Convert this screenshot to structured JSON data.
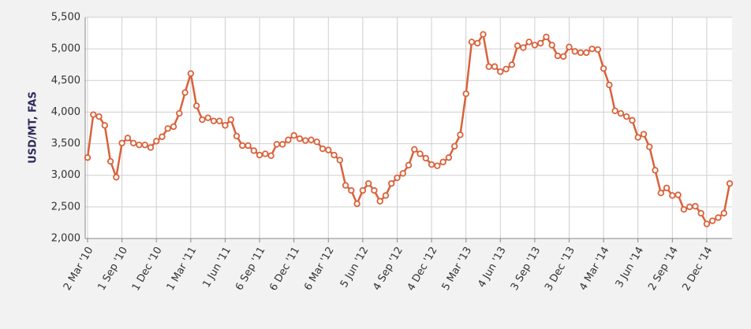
{
  "chart_data": {
    "type": "line",
    "ylabel": "USD/MT, FAS",
    "categories": [
      "2 Mar '10",
      null,
      null,
      null,
      null,
      null,
      "1 Sep '10",
      null,
      null,
      null,
      null,
      null,
      "1 Dec '10",
      null,
      null,
      null,
      null,
      null,
      "1 Mar '11",
      null,
      null,
      null,
      null,
      null,
      "1 Jun '11",
      null,
      null,
      null,
      null,
      null,
      "6 Sep '11",
      null,
      null,
      null,
      null,
      null,
      "6 Dec '11",
      null,
      null,
      null,
      null,
      null,
      "6 Mar '12",
      null,
      null,
      null,
      null,
      null,
      "5 Jun '12",
      null,
      null,
      null,
      null,
      null,
      "4 Sep '12",
      null,
      null,
      null,
      null,
      null,
      "4 Dec '12",
      null,
      null,
      null,
      null,
      null,
      "5 Mar '13",
      null,
      null,
      null,
      null,
      null,
      "4 Jun '13",
      null,
      null,
      null,
      null,
      null,
      "3 Sep '13",
      null,
      null,
      null,
      null,
      null,
      "3 Dec '13",
      null,
      null,
      null,
      null,
      null,
      "4 Mar '14",
      null,
      null,
      null,
      null,
      null,
      "3 Jun '14",
      null,
      null,
      null,
      null,
      null,
      "2 Sep '14",
      null,
      null,
      null,
      null,
      null,
      "2 Dec '14",
      null,
      null,
      null,
      null
    ],
    "values": [
      3280,
      3960,
      3930,
      3790,
      3220,
      2970,
      3510,
      3590,
      3510,
      3480,
      3480,
      3440,
      3540,
      3610,
      3740,
      3770,
      3980,
      4310,
      4610,
      4100,
      3880,
      3910,
      3860,
      3860,
      3790,
      3880,
      3620,
      3470,
      3470,
      3390,
      3320,
      3340,
      3310,
      3490,
      3490,
      3560,
      3630,
      3580,
      3550,
      3560,
      3530,
      3420,
      3400,
      3320,
      3240,
      2840,
      2760,
      2550,
      2760,
      2870,
      2760,
      2590,
      2680,
      2870,
      2960,
      3030,
      3160,
      3410,
      3340,
      3270,
      3170,
      3150,
      3210,
      3280,
      3460,
      3640,
      4290,
      5110,
      5090,
      5230,
      4720,
      4720,
      4640,
      4680,
      4750,
      5050,
      5020,
      5110,
      5060,
      5090,
      5190,
      5060,
      4890,
      4880,
      5030,
      4960,
      4940,
      4940,
      5000,
      4990,
      4690,
      4430,
      4020,
      3980,
      3930,
      3870,
      3600,
      3650,
      3450,
      3080,
      2720,
      2800,
      2680,
      2690,
      2460,
      2500,
      2510,
      2400,
      2230,
      2280,
      2330,
      2400,
      2870
    ],
    "color": "#d9623b",
    "ylim": [
      2000,
      5500
    ],
    "yticks": [
      {
        "value": 2000,
        "label": "2,000"
      },
      {
        "value": 2500,
        "label": "2,500"
      },
      {
        "value": 3000,
        "label": "3,000"
      },
      {
        "value": 3500,
        "label": "3,500"
      },
      {
        "value": 4000,
        "label": "4,000"
      },
      {
        "value": 4500,
        "label": "4,500"
      },
      {
        "value": 5000,
        "label": "5,000"
      },
      {
        "value": 5500,
        "label": "5,500"
      }
    ],
    "grid": true
  }
}
